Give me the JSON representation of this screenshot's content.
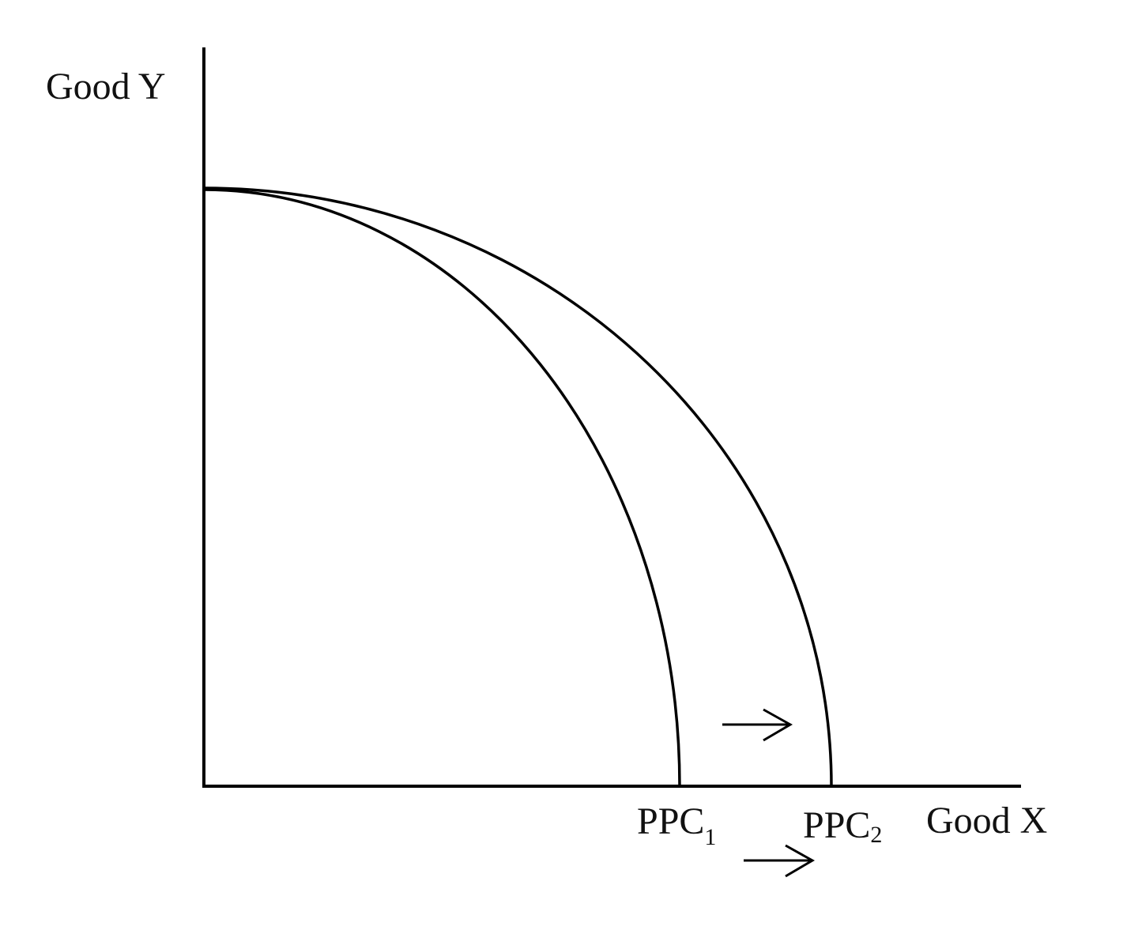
{
  "axes": {
    "y_label": "Good Y",
    "x_label": "Good X"
  },
  "curves": [
    {
      "name": "PPC",
      "subscript": "1"
    },
    {
      "name": "PPC",
      "subscript": "2"
    }
  ],
  "annotations": {
    "shift_direction": "right"
  },
  "colors": {
    "ink": "#000000",
    "background": "#ffffff"
  }
}
